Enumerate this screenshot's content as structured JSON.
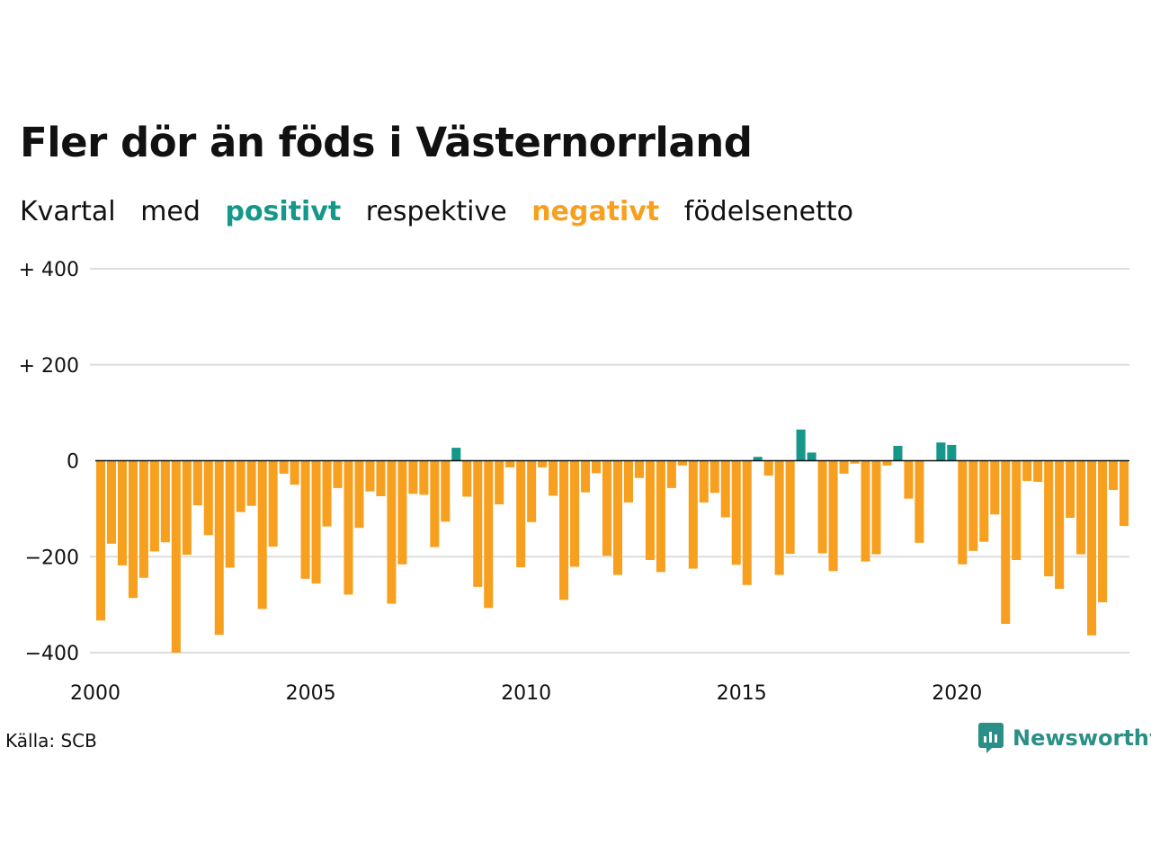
{
  "title": "Fler dör än föds i Västernorrland",
  "subtitle": {
    "w1": "Kvartal",
    "w2": "med",
    "positive": "positivt",
    "w3": "respektive",
    "negative": "negativt",
    "w4": "födelsenetto"
  },
  "source": "Källa: SCB",
  "brand": "Newsworthy",
  "colors": {
    "positive": "#15978a",
    "negative": "#f7a01f",
    "brand": "#2a8f86",
    "grid": "#dddddd"
  },
  "chart_data": {
    "type": "bar",
    "x_start_year": 2000,
    "periods_per_year": 4,
    "ylim": [
      -400,
      400
    ],
    "yticks": [
      {
        "value": 400,
        "label": "+ 400"
      },
      {
        "value": 200,
        "label": "+ 200"
      },
      {
        "value": 0,
        "label": "0"
      },
      {
        "value": -200,
        "label": "−200"
      },
      {
        "value": -400,
        "label": "−400"
      }
    ],
    "xticks": [
      {
        "value": 2000,
        "label": "2000"
      },
      {
        "value": 2005,
        "label": "2005"
      },
      {
        "value": 2010,
        "label": "2010"
      },
      {
        "value": 2015,
        "label": "2015"
      },
      {
        "value": 2020,
        "label": "2020"
      }
    ],
    "values": [
      -333,
      -173,
      -218,
      -286,
      -244,
      -189,
      -170,
      -400,
      -196,
      -93,
      -155,
      -363,
      -223,
      -107,
      -94,
      -309,
      -179,
      -27,
      -50,
      -246,
      -256,
      -137,
      -57,
      -279,
      -140,
      -64,
      -74,
      -298,
      -216,
      -69,
      -71,
      -180,
      -127,
      27,
      -75,
      -263,
      -307,
      -91,
      -14,
      -222,
      -128,
      -14,
      -73,
      -290,
      -221,
      -66,
      -26,
      -198,
      -238,
      -87,
      -36,
      -207,
      -232,
      -57,
      -10,
      -225,
      -87,
      -67,
      -118,
      -217,
      -259,
      8,
      -31,
      -238,
      -194,
      65,
      17,
      -193,
      -230,
      -27,
      -6,
      -210,
      -195,
      -10,
      31,
      -79,
      -171,
      -1,
      38,
      33,
      -216,
      -188,
      -169,
      -112,
      -340,
      -207,
      -42,
      -44,
      -241,
      -267,
      -119,
      -195,
      -364,
      -295,
      -61,
      -136
    ]
  }
}
